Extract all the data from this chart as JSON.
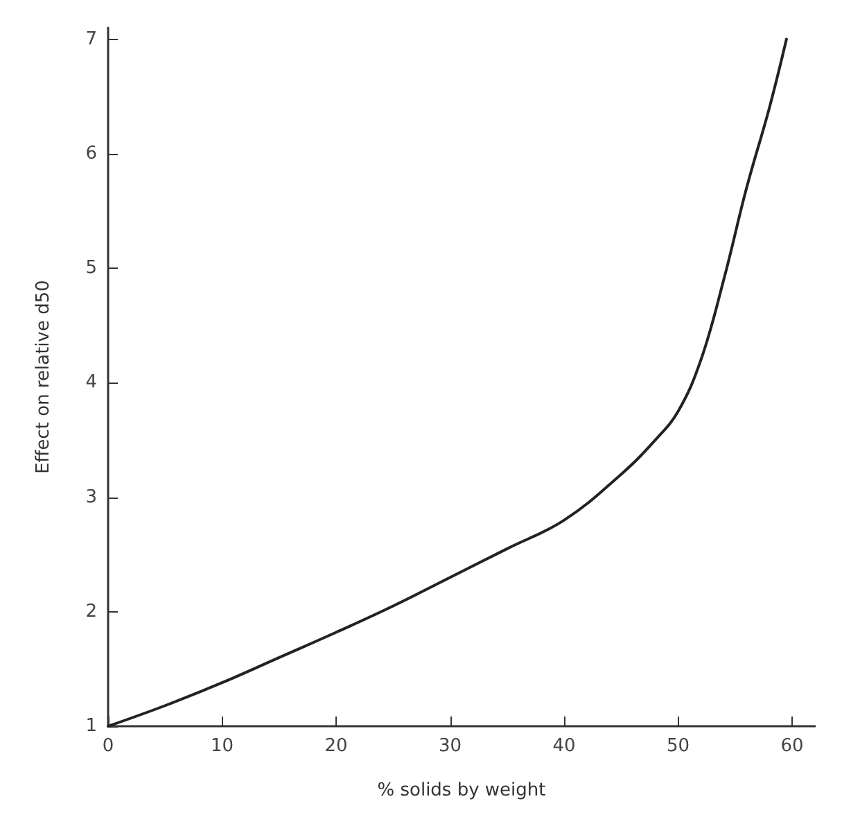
{
  "chart_data": {
    "type": "line",
    "xlabel": "% solids by weight",
    "ylabel": "Effect on relative d50",
    "x": [
      0,
      5,
      10,
      15,
      20,
      25,
      30,
      35,
      40,
      45,
      48,
      50,
      52,
      54,
      56,
      58,
      59.5
    ],
    "series": [
      {
        "color": "#222222",
        "values": [
          1,
          1.18,
          1.38,
          1.6,
          1.82,
          2.05,
          2.3,
          2.55,
          2.8,
          3.2,
          3.5,
          3.75,
          4.2,
          4.9,
          5.7,
          6.4,
          7.0
        ]
      }
    ],
    "xlim": [
      0,
      62
    ],
    "xticks": [
      0,
      10,
      20,
      30,
      40,
      50,
      60
    ],
    "ylim": [
      1,
      7.1
    ],
    "yticks": [
      1,
      2,
      3,
      4,
      5,
      6,
      7
    ],
    "grid": false,
    "marker": "none",
    "line_style": "solid"
  }
}
